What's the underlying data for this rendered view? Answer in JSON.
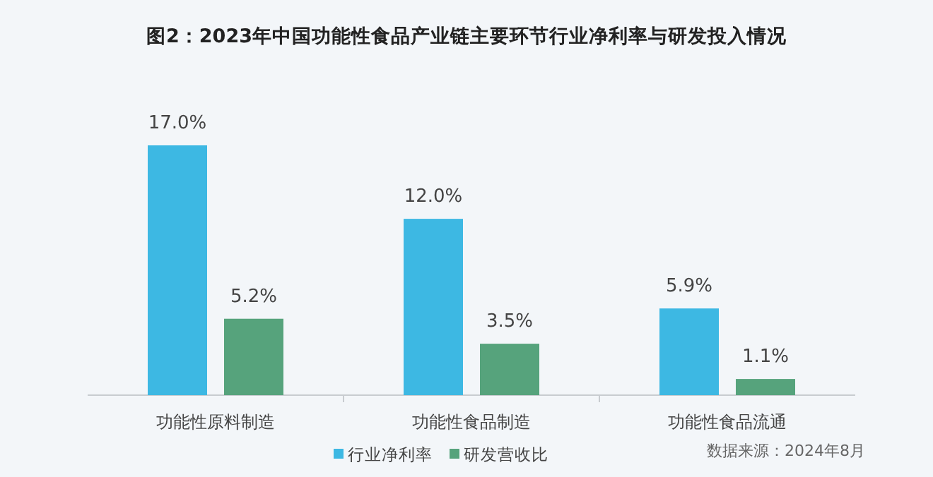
{
  "chart_data": {
    "type": "bar",
    "title": "图2：2023年中国功能性食品产业链主要环节行业净利率与研发投入情况",
    "categories": [
      "功能性原料制造",
      "功能性食品制造",
      "功能性食品流通"
    ],
    "series": [
      {
        "name": "行业净利率",
        "color": "#3db8e3",
        "values": [
          17.0,
          12.0,
          5.9
        ],
        "value_labels": [
          "17.0%",
          "12.0%",
          "5.9%"
        ]
      },
      {
        "name": "研发营收比",
        "color": "#56a37c",
        "values": [
          5.2,
          3.5,
          1.1
        ],
        "value_labels": [
          "5.2%",
          "3.5%",
          "1.1%"
        ]
      }
    ],
    "legend": "bottom",
    "annotations": [
      "数据来源：2024年8月"
    ]
  }
}
